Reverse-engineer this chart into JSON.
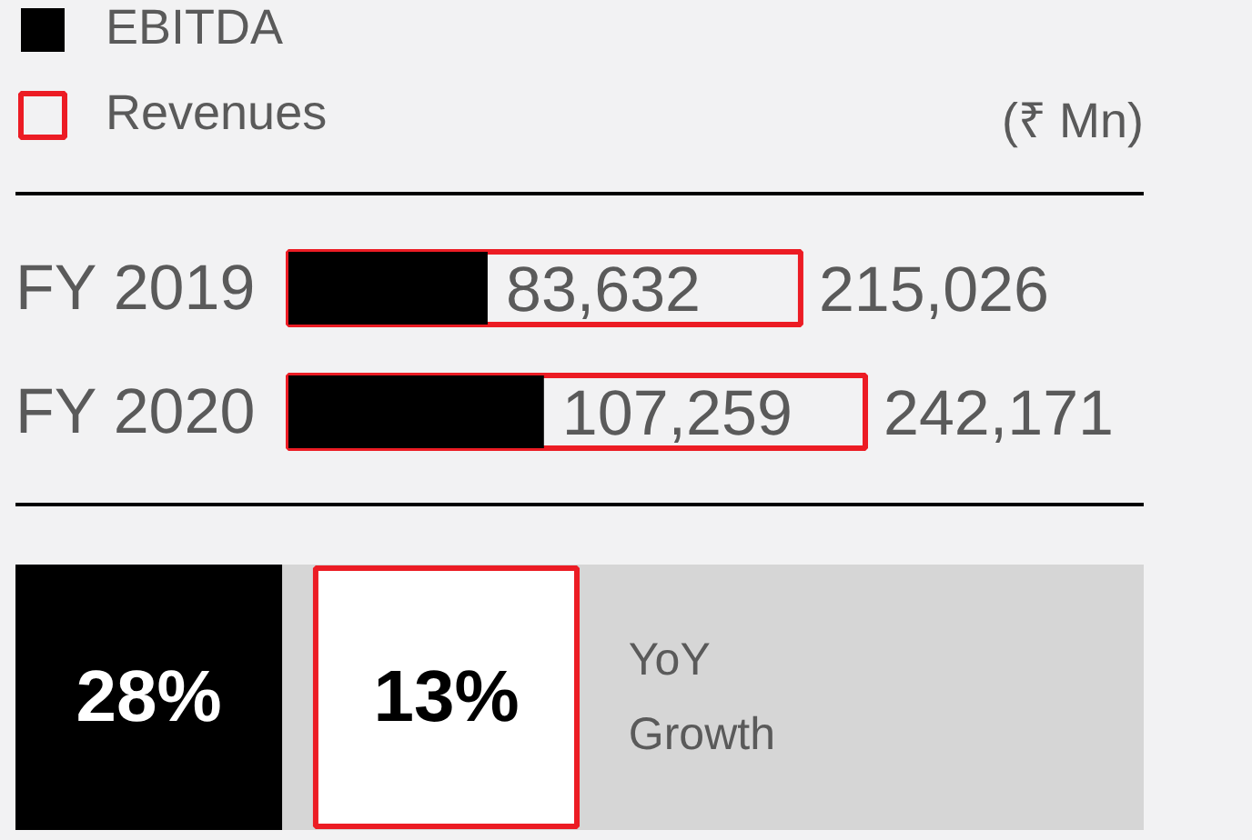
{
  "chart_data": [
    {
      "type": "bar",
      "orientation": "horizontal",
      "categories": [
        "FY 2019",
        "FY 2020"
      ],
      "series": [
        {
          "name": "EBITDA",
          "color": "#000000",
          "values": [
            83632,
            107259
          ],
          "value_labels": [
            "83,632",
            "107,259"
          ]
        },
        {
          "name": "Revenues",
          "color": "#ec1c24",
          "values": [
            215026,
            242171
          ],
          "value_labels": [
            "215,026",
            "242,171"
          ]
        }
      ],
      "legend": "top left",
      "tick_labels": "y",
      "annotations": [
        "(₹ Mn)"
      ]
    },
    {
      "type": "other",
      "categories": [
        null,
        null
      ],
      "colors": [
        "#000000",
        "#ec1c24"
      ],
      "value_labels": [
        "28%",
        "13%"
      ],
      "annotations": [
        "YoY Growth"
      ]
    }
  ]
}
